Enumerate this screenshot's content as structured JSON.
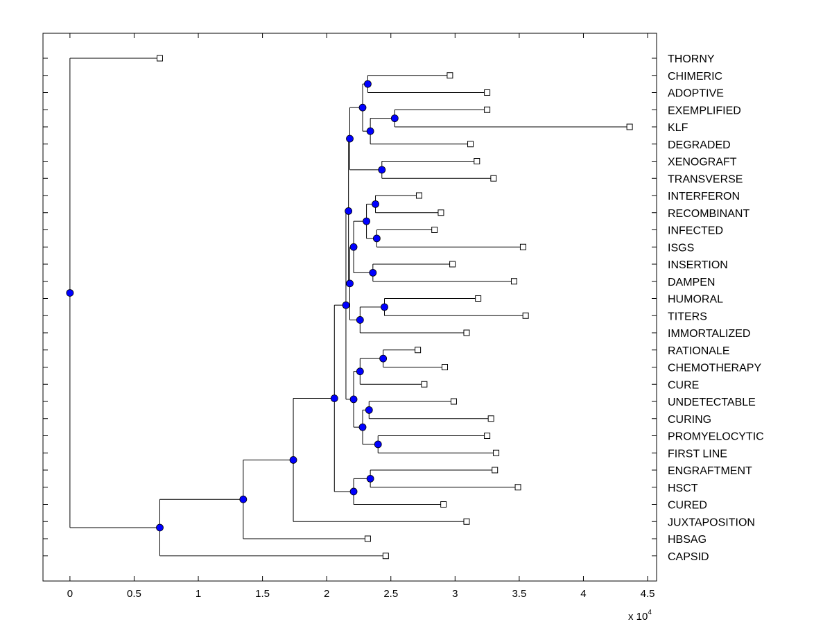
{
  "chart_data": {
    "type": "dendrogram",
    "title": "",
    "xlabel": "",
    "ylabel": "",
    "x_scale_label": {
      "base": "x 10",
      "exponent": "4"
    },
    "xlim": [
      -0.21,
      4.57
    ],
    "x_ticks": [
      0,
      0.5,
      1,
      1.5,
      2,
      2.5,
      3,
      3.5,
      4,
      4.5
    ],
    "x_tick_labels": [
      "0",
      "0.5",
      "1",
      "1.5",
      "2",
      "2.5",
      "3",
      "3.5",
      "4",
      "4.5"
    ],
    "colors": {
      "node": "#0000ff",
      "line": "#000000",
      "leaf_marker": "#ffffff"
    },
    "leaves": [
      {
        "name": "THORNY",
        "x": 0.7
      },
      {
        "name": "CHIMERIC",
        "x": 2.96
      },
      {
        "name": "ADOPTIVE",
        "x": 3.25
      },
      {
        "name": "EXEMPLIFIED",
        "x": 3.25
      },
      {
        "name": "KLF",
        "x": 4.36
      },
      {
        "name": "DEGRADED",
        "x": 3.12
      },
      {
        "name": "XENOGRAFT",
        "x": 3.17
      },
      {
        "name": "TRANSVERSE",
        "x": 3.3
      },
      {
        "name": "INTERFERON",
        "x": 2.72
      },
      {
        "name": "RECOMBINANT",
        "x": 2.89
      },
      {
        "name": "INFECTED",
        "x": 2.84
      },
      {
        "name": "ISGS",
        "x": 3.53
      },
      {
        "name": "INSERTION",
        "x": 2.98
      },
      {
        "name": "DAMPEN",
        "x": 3.46
      },
      {
        "name": "HUMORAL",
        "x": 3.18
      },
      {
        "name": "TITERS",
        "x": 3.55
      },
      {
        "name": "IMMORTALIZED",
        "x": 3.09
      },
      {
        "name": "RATIONALE",
        "x": 2.71
      },
      {
        "name": "CHEMOTHERAPY",
        "x": 2.92
      },
      {
        "name": "CURE",
        "x": 2.76
      },
      {
        "name": "UNDETECTABLE",
        "x": 2.99
      },
      {
        "name": "CURING",
        "x": 3.28
      },
      {
        "name": "PROMYELOCYTIC",
        "x": 3.25
      },
      {
        "name": "FIRST LINE",
        "x": 3.32
      },
      {
        "name": "ENGRAFTMENT",
        "x": 3.31
      },
      {
        "name": "HSCT",
        "x": 3.49
      },
      {
        "name": "CURED",
        "x": 2.91
      },
      {
        "name": "JUXTAPOSITION",
        "x": 3.09
      },
      {
        "name": "HBSAG",
        "x": 2.32
      },
      {
        "name": "CAPSID",
        "x": 2.46
      }
    ],
    "nodes": [
      {
        "id": "n1",
        "x": 2.32,
        "children": [
          "CHIMERIC",
          "ADOPTIVE"
        ]
      },
      {
        "id": "n2",
        "x": 2.53,
        "children": [
          "EXEMPLIFIED",
          "KLF"
        ]
      },
      {
        "id": "n3",
        "x": 2.34,
        "children": [
          "n2",
          "DEGRADED"
        ]
      },
      {
        "id": "n4",
        "x": 2.28,
        "children": [
          "n1",
          "n3"
        ]
      },
      {
        "id": "n5",
        "x": 2.43,
        "children": [
          "XENOGRAFT",
          "TRANSVERSE"
        ]
      },
      {
        "id": "n6",
        "x": 2.18,
        "children": [
          "n4",
          "n5"
        ]
      },
      {
        "id": "n7",
        "x": 2.38,
        "children": [
          "INTERFERON",
          "RECOMBINANT"
        ]
      },
      {
        "id": "n8",
        "x": 2.39,
        "children": [
          "INFECTED",
          "ISGS"
        ]
      },
      {
        "id": "n9",
        "x": 2.31,
        "children": [
          "n7",
          "n8"
        ]
      },
      {
        "id": "n10",
        "x": 2.36,
        "children": [
          "INSERTION",
          "DAMPEN"
        ]
      },
      {
        "id": "n11",
        "x": 2.21,
        "children": [
          "n9",
          "n10"
        ]
      },
      {
        "id": "n12",
        "x": 2.45,
        "children": [
          "HUMORAL",
          "TITERS"
        ]
      },
      {
        "id": "n13",
        "x": 2.26,
        "children": [
          "n12",
          "IMMORTALIZED"
        ]
      },
      {
        "id": "n14",
        "x": 2.18,
        "children": [
          "n11",
          "n13"
        ]
      },
      {
        "id": "n15",
        "x": 2.17,
        "children": [
          "n6",
          "n14"
        ]
      },
      {
        "id": "n16",
        "x": 2.44,
        "children": [
          "RATIONALE",
          "CHEMOTHERAPY"
        ]
      },
      {
        "id": "n17",
        "x": 2.26,
        "children": [
          "n16",
          "CURE"
        ]
      },
      {
        "id": "n18",
        "x": 2.33,
        "children": [
          "UNDETECTABLE",
          "CURING"
        ]
      },
      {
        "id": "n19",
        "x": 2.4,
        "children": [
          "PROMYELOCYTIC",
          "FIRST LINE"
        ]
      },
      {
        "id": "n20",
        "x": 2.28,
        "children": [
          "n18",
          "n19"
        ]
      },
      {
        "id": "n21",
        "x": 2.21,
        "children": [
          "n17",
          "n20"
        ]
      },
      {
        "id": "n22",
        "x": 2.15,
        "children": [
          "n15",
          "n21"
        ]
      },
      {
        "id": "n23",
        "x": 2.34,
        "children": [
          "ENGRAFTMENT",
          "HSCT"
        ]
      },
      {
        "id": "n24",
        "x": 2.21,
        "children": [
          "n23",
          "CURED"
        ]
      },
      {
        "id": "n25",
        "x": 2.06,
        "children": [
          "n22",
          "n24"
        ]
      },
      {
        "id": "n26",
        "x": 1.74,
        "children": [
          "n25",
          "JUXTAPOSITION"
        ]
      },
      {
        "id": "n27",
        "x": 1.35,
        "children": [
          "n26",
          "HBSAG"
        ]
      },
      {
        "id": "n28",
        "x": 0.7,
        "children": [
          "n27",
          "CAPSID"
        ]
      },
      {
        "id": "n29",
        "x": 0.0,
        "children": [
          "THORNY",
          "n28"
        ]
      }
    ]
  }
}
